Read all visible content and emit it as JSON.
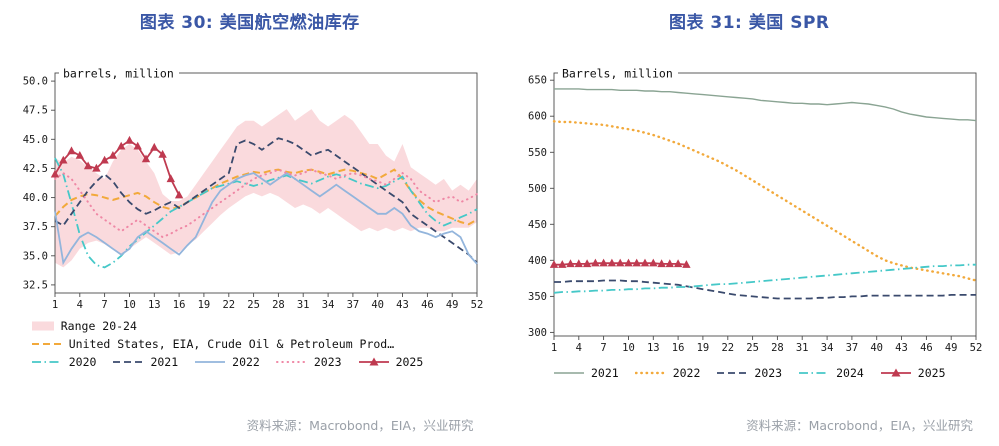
{
  "theme": {
    "title_color": "#3a57a6",
    "source_color": "#9aa0a8",
    "axis_color": "#4a4a4a"
  },
  "chart_data": [
    {
      "id": "jet-fuel-inventory",
      "type": "line",
      "title": "图表 30: 美国航空燃油库存",
      "ylabel": "barrels, million",
      "source": "资料来源：Macrobond，EIA，兴业研究",
      "legend_position": "bottom",
      "x_min": 1,
      "x_max": 52,
      "xticks": [
        1,
        4,
        7,
        10,
        13,
        16,
        19,
        22,
        25,
        28,
        31,
        34,
        37,
        40,
        43,
        46,
        49,
        52
      ],
      "ylim": [
        31.8,
        50.7
      ],
      "yticks": [
        32.5,
        35.0,
        37.5,
        40.0,
        42.5,
        45.0,
        47.5,
        50.0
      ],
      "ydecimals": 1,
      "band": {
        "name": "Range 20-24",
        "color": "#fadadd",
        "upper": [
          43.4,
          43.0,
          43.5,
          43.2,
          42.6,
          42.1,
          41.6,
          43.1,
          44.1,
          44.6,
          44.1,
          43.1,
          42.1,
          40.3,
          39.7,
          39.7,
          40.1,
          41.1,
          42.1,
          43.1,
          44.1,
          45.1,
          46.1,
          46.6,
          46.6,
          46.1,
          46.6,
          47.1,
          47.6,
          46.6,
          47.1,
          47.6,
          46.6,
          46.1,
          46.6,
          47.1,
          46.6,
          45.6,
          44.6,
          44.6,
          43.6,
          43.1,
          44.6,
          42.6,
          42.1,
          41.6,
          41.1,
          41.6,
          40.6,
          41.1,
          40.6,
          41.6
        ],
        "lower": [
          34.4,
          34.0,
          34.6,
          35.6,
          36.1,
          36.3,
          36.0,
          35.5,
          35.1,
          35.6,
          36.1,
          36.6,
          36.1,
          35.6,
          35.1,
          35.3,
          35.9,
          36.4,
          37.1,
          37.8,
          38.5,
          39.1,
          39.6,
          40.1,
          40.4,
          40.1,
          40.4,
          40.1,
          39.6,
          39.1,
          39.4,
          39.1,
          38.6,
          39.1,
          38.6,
          38.1,
          37.6,
          37.1,
          37.4,
          37.1,
          37.4,
          37.1,
          37.4,
          37.1,
          37.4,
          37.4,
          37.1,
          37.1,
          37.4,
          37.4,
          37.4,
          37.9
        ]
      },
      "series": [
        {
          "name": "United States, EIA, Crude Oil & Petroleum Prod…",
          "color": "#f2a93b",
          "dash": "dash",
          "width": 2,
          "values": [
            38.4,
            39.2,
            39.8,
            40.1,
            40.3,
            40.2,
            40.0,
            39.8,
            40.0,
            40.2,
            40.4,
            40.1,
            39.6,
            39.2,
            39.0,
            39.2,
            39.6,
            40.0,
            40.4,
            40.8,
            41.2,
            41.5,
            41.8,
            42.0,
            42.2,
            42.1,
            42.3,
            42.4,
            42.2,
            42.1,
            42.3,
            42.4,
            42.2,
            42.0,
            42.2,
            42.4,
            42.3,
            42.1,
            41.9,
            41.6,
            42.0,
            42.4,
            41.6,
            40.6,
            39.8,
            39.2,
            38.8,
            38.5,
            38.2,
            37.9,
            37.7,
            38.1
          ]
        },
        {
          "name": "2020",
          "color": "#45c8c8",
          "dash": "dashdot",
          "width": 1.8,
          "values": [
            43.4,
            42.0,
            39.5,
            36.8,
            35.0,
            34.2,
            34.0,
            34.4,
            35.0,
            35.8,
            36.4,
            37.0,
            37.6,
            38.2,
            38.8,
            39.2,
            39.6,
            40.0,
            40.4,
            40.8,
            41.0,
            41.2,
            41.4,
            41.2,
            41.0,
            41.2,
            41.5,
            41.7,
            41.9,
            41.6,
            41.4,
            41.2,
            41.5,
            41.8,
            42.0,
            41.8,
            41.5,
            41.2,
            41.0,
            40.8,
            41.0,
            41.4,
            41.8,
            40.6,
            39.6,
            38.6,
            38.0,
            37.6,
            37.9,
            38.3,
            38.6,
            39.0
          ]
        },
        {
          "name": "2021",
          "color": "#3a4a6d",
          "dash": "dash",
          "width": 1.8,
          "values": [
            38.0,
            37.6,
            38.6,
            39.6,
            40.6,
            41.4,
            42.0,
            41.4,
            40.4,
            39.6,
            39.0,
            38.6,
            38.9,
            39.3,
            39.6,
            39.1,
            39.6,
            40.1,
            40.6,
            41.1,
            41.6,
            42.1,
            44.6,
            44.9,
            44.6,
            44.1,
            44.6,
            45.1,
            44.9,
            44.6,
            44.1,
            43.6,
            43.9,
            44.1,
            43.6,
            43.1,
            42.6,
            42.1,
            41.6,
            41.1,
            40.6,
            40.1,
            39.6,
            38.6,
            38.1,
            37.6,
            37.1,
            36.6,
            36.1,
            35.6,
            35.1,
            34.4
          ]
        },
        {
          "name": "2022",
          "color": "#93b5dc",
          "dash": "solid",
          "width": 1.8,
          "values": [
            38.8,
            34.4,
            35.6,
            36.6,
            37.0,
            36.6,
            36.1,
            35.6,
            35.1,
            35.6,
            36.6,
            37.1,
            36.6,
            36.1,
            35.6,
            35.1,
            35.9,
            36.6,
            38.1,
            39.6,
            40.6,
            41.1,
            41.6,
            41.9,
            42.1,
            41.6,
            41.1,
            41.6,
            42.1,
            41.6,
            41.1,
            40.6,
            40.1,
            40.6,
            41.1,
            40.6,
            40.1,
            39.6,
            39.1,
            38.6,
            38.6,
            39.1,
            38.6,
            37.6,
            37.1,
            36.9,
            36.6,
            36.9,
            37.1,
            36.6,
            35.1,
            34.3
          ]
        },
        {
          "name": "2023",
          "color": "#ef87a5",
          "dash": "dot",
          "width": 2,
          "values": [
            41.6,
            42.1,
            41.6,
            40.6,
            39.6,
            38.6,
            38.1,
            37.6,
            37.1,
            37.6,
            38.1,
            37.6,
            37.1,
            36.6,
            36.9,
            37.3,
            37.6,
            38.1,
            38.6,
            39.1,
            39.6,
            40.1,
            40.6,
            41.1,
            41.6,
            41.9,
            42.1,
            42.4,
            42.1,
            41.9,
            42.1,
            42.4,
            42.1,
            41.9,
            41.6,
            41.9,
            42.1,
            41.9,
            41.6,
            41.4,
            41.1,
            41.6,
            42.1,
            41.6,
            40.6,
            40.1,
            39.6,
            39.9,
            40.1,
            39.6,
            39.9,
            40.3
          ]
        },
        {
          "name": "2025",
          "color": "#bf3a50",
          "dash": "solid",
          "width": 1.8,
          "marker": "triangle",
          "values": [
            42.0,
            43.2,
            44.0,
            43.6,
            42.7,
            42.5,
            43.2,
            43.6,
            44.4,
            44.9,
            44.4,
            43.3,
            44.3,
            43.7,
            41.6,
            40.2
          ]
        }
      ],
      "legend_rows": [
        [
          "band"
        ],
        [
          0
        ],
        [
          1,
          2,
          3,
          4,
          5
        ]
      ]
    },
    {
      "id": "us-spr",
      "type": "line",
      "title": "图表 31: 美国 SPR",
      "ylabel": "Barrels, million",
      "source": "资料来源：Macrobond，EIA，兴业研究",
      "legend_position": "bottom",
      "x_min": 1,
      "x_max": 52,
      "xticks": [
        1,
        4,
        7,
        10,
        13,
        16,
        19,
        22,
        25,
        28,
        31,
        34,
        37,
        40,
        43,
        46,
        49,
        52
      ],
      "ylim": [
        295,
        660
      ],
      "yticks": [
        300,
        350,
        400,
        450,
        500,
        550,
        600,
        650
      ],
      "ydecimals": 0,
      "series": [
        {
          "name": "2021",
          "color": "#8aa493",
          "dash": "solid",
          "width": 1.4,
          "values": [
            638,
            638,
            638,
            638,
            637,
            637,
            637,
            637,
            636,
            636,
            636,
            635,
            635,
            634,
            634,
            633,
            632,
            631,
            630,
            629,
            628,
            627,
            626,
            625,
            624,
            622,
            621,
            620,
            619,
            618,
            618,
            617,
            617,
            616,
            617,
            618,
            619,
            618,
            617,
            615,
            613,
            610,
            606,
            603,
            601,
            599,
            598,
            597,
            596,
            595,
            595,
            594
          ]
        },
        {
          "name": "2022",
          "color": "#f2a93b",
          "dash": "dot",
          "width": 2.4,
          "values": [
            593,
            592,
            592,
            591,
            590,
            589,
            588,
            586,
            584,
            582,
            580,
            577,
            574,
            570,
            566,
            562,
            557,
            552,
            547,
            542,
            537,
            531,
            525,
            518,
            511,
            504,
            497,
            490,
            483,
            476,
            469,
            462,
            455,
            448,
            441,
            434,
            427,
            420,
            413,
            406,
            400,
            396,
            393,
            390,
            388,
            386,
            384,
            382,
            380,
            378,
            375,
            372
          ]
        },
        {
          "name": "2023",
          "color": "#3a4a6d",
          "dash": "dash",
          "width": 1.8,
          "values": [
            370,
            370,
            371,
            371,
            371,
            371,
            372,
            372,
            372,
            371,
            371,
            370,
            369,
            368,
            367,
            366,
            364,
            362,
            360,
            358,
            356,
            354,
            352,
            351,
            350,
            349,
            348,
            347,
            347,
            347,
            347,
            347,
            348,
            348,
            349,
            349,
            350,
            350,
            351,
            351,
            351,
            351,
            351,
            351,
            351,
            351,
            351,
            351,
            352,
            352,
            352,
            352
          ]
        },
        {
          "name": "2024",
          "color": "#45c8c8",
          "dash": "dashdot",
          "width": 1.8,
          "values": [
            355,
            356,
            356,
            357,
            357,
            358,
            358,
            359,
            359,
            360,
            360,
            361,
            361,
            362,
            362,
            363,
            363,
            364,
            365,
            366,
            367,
            367,
            368,
            369,
            370,
            371,
            372,
            373,
            374,
            375,
            376,
            377,
            378,
            379,
            380,
            381,
            382,
            383,
            384,
            385,
            386,
            387,
            388,
            389,
            390,
            391,
            392,
            392,
            393,
            393,
            394,
            394
          ]
        },
        {
          "name": "2025",
          "color": "#bf3a50",
          "dash": "solid",
          "width": 1.8,
          "marker": "triangle",
          "values": [
            394,
            394,
            395,
            395,
            395,
            396,
            396,
            396,
            396,
            396,
            396,
            396,
            396,
            395,
            395,
            395,
            394
          ]
        }
      ],
      "legend_rows": [
        [
          0,
          1,
          2,
          3,
          4
        ]
      ]
    }
  ]
}
